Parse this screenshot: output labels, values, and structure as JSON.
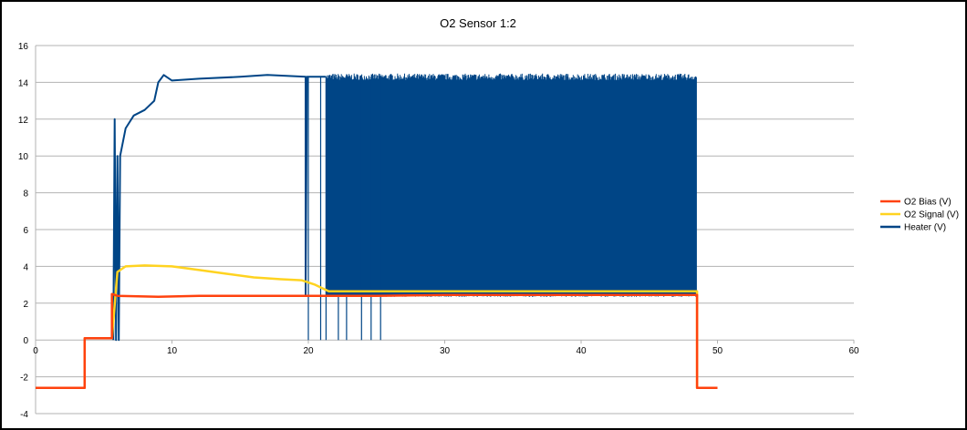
{
  "chart_data": {
    "type": "line",
    "title": "O2 Sensor 1:2",
    "xlabel": "",
    "ylabel": "",
    "xlim": [
      0,
      60
    ],
    "ylim": [
      -4,
      16
    ],
    "x_ticks": [
      0,
      10,
      20,
      30,
      40,
      50,
      60
    ],
    "y_ticks": [
      -4,
      -2,
      0,
      2,
      4,
      6,
      8,
      10,
      12,
      14,
      16
    ],
    "grid": "horizontal",
    "legend_position": "right",
    "series": [
      {
        "name": "O2 Bias (V)",
        "color": "#ff420e",
        "points": [
          [
            0,
            -2.6
          ],
          [
            3.6,
            -2.6
          ],
          [
            3.6,
            0.1
          ],
          [
            5.6,
            0.1
          ],
          [
            5.6,
            2.5
          ],
          [
            6,
            2.4
          ],
          [
            9,
            2.35
          ],
          [
            12,
            2.4
          ],
          [
            15,
            2.4
          ],
          [
            20,
            2.4
          ],
          [
            25,
            2.4
          ],
          [
            30,
            2.45
          ],
          [
            35,
            2.45
          ],
          [
            40,
            2.45
          ],
          [
            45,
            2.45
          ],
          [
            48.5,
            2.45
          ],
          [
            48.5,
            -2.6
          ],
          [
            50,
            -2.6
          ]
        ]
      },
      {
        "name": "O2 Signal (V)",
        "color": "#ffd320",
        "points": [
          [
            0,
            -2.6
          ],
          [
            3.6,
            -2.6
          ],
          [
            3.6,
            0.1
          ],
          [
            5.6,
            0.1
          ],
          [
            6,
            3.7
          ],
          [
            6.6,
            4.0
          ],
          [
            8,
            4.05
          ],
          [
            10,
            4.0
          ],
          [
            12,
            3.8
          ],
          [
            14,
            3.6
          ],
          [
            16,
            3.4
          ],
          [
            18,
            3.3
          ],
          [
            19.5,
            3.25
          ],
          [
            20.5,
            3.0
          ],
          [
            21.5,
            2.65
          ],
          [
            25,
            2.65
          ],
          [
            30,
            2.65
          ],
          [
            40,
            2.65
          ],
          [
            48.5,
            2.65
          ],
          [
            48.5,
            -2.6
          ],
          [
            50,
            -2.6
          ]
        ]
      },
      {
        "name": "Heater (V)",
        "color": "#004586",
        "points": [
          [
            5.7,
            0
          ],
          [
            5.8,
            12
          ],
          [
            5.9,
            0
          ],
          [
            6.0,
            10
          ],
          [
            6.1,
            0
          ],
          [
            6.2,
            10
          ],
          [
            6.6,
            11.5
          ],
          [
            7.2,
            12.2
          ],
          [
            8,
            12.5
          ],
          [
            8.7,
            13
          ],
          [
            9,
            14
          ],
          [
            9.4,
            14.4
          ],
          [
            10,
            14.1
          ],
          [
            12,
            14.2
          ],
          [
            15,
            14.3
          ],
          [
            17,
            14.4
          ],
          [
            19.8,
            14.3
          ],
          [
            19.8,
            2.4
          ],
          [
            19.9,
            14.3
          ],
          [
            21.3,
            14.3
          ]
        ],
        "oscillation": {
          "x_start": 21.3,
          "x_end": 48.5,
          "high": 14.3,
          "low": 2.4
        }
      }
    ]
  }
}
